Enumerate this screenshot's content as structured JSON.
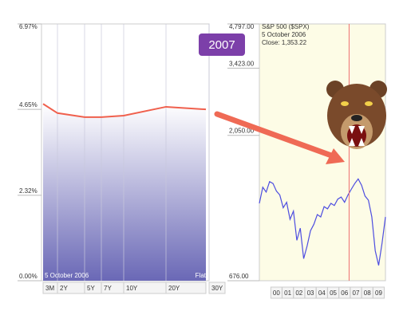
{
  "chart_data": [
    {
      "type": "area",
      "categories": [
        "3M",
        "2Y",
        "5Y",
        "7Y",
        "10Y",
        "20Y",
        "30Y"
      ],
      "values": [
        4.8,
        4.55,
        4.44,
        4.44,
        4.48,
        4.72,
        4.65
      ],
      "color": "#f0604d",
      "ylim": [
        0,
        6.97
      ],
      "yticks": [
        {
          "value": 0,
          "label": "0.00%"
        },
        {
          "value": 2.32,
          "label": "2.32%"
        },
        {
          "value": 4.65,
          "label": "4.65%"
        },
        {
          "value": 6.97,
          "label": "6.97%"
        }
      ],
      "grid": true,
      "annotations": [
        "5  October 2006",
        "Flat"
      ]
    },
    {
      "type": "line",
      "title": "S&P 500 ($SPX)",
      "annotations": [
        "5  October 2006",
        "Close: 1,353.22"
      ],
      "x": [
        -1.5,
        -1.2,
        -0.9,
        -0.6,
        -0.3,
        0,
        0.3,
        0.6,
        0.9,
        1.2,
        1.5,
        1.8,
        2.1,
        2.4,
        2.7,
        3.0,
        3.3,
        3.6,
        3.9,
        4.2,
        4.5,
        4.8,
        5.1,
        5.4,
        5.7,
        6.0,
        6.3,
        6.6,
        6.9,
        7.2,
        7.5,
        7.8,
        8.1,
        8.4,
        8.7,
        9.0,
        9.3,
        9.6
      ],
      "values": [
        1220,
        1380,
        1330,
        1440,
        1420,
        1340,
        1300,
        1180,
        1230,
        1080,
        1150,
        920,
        1010,
        800,
        880,
        990,
        1040,
        1120,
        1100,
        1190,
        1170,
        1220,
        1200,
        1260,
        1280,
        1230,
        1300,
        1360,
        1420,
        1470,
        1400,
        1290,
        1250,
        1100,
        850,
        760,
        900,
        1100
      ],
      "color": "#4d4de0",
      "log_scale": true,
      "xlim": [
        -1.5,
        9.6
      ],
      "xticks": [
        {
          "value": 0,
          "label": "00"
        },
        {
          "value": 1,
          "label": "01"
        },
        {
          "value": 2,
          "label": "02"
        },
        {
          "value": 3,
          "label": "03"
        },
        {
          "value": 4,
          "label": "04"
        },
        {
          "value": 5,
          "label": "05"
        },
        {
          "value": 6,
          "label": "06"
        },
        {
          "value": 7,
          "label": "07"
        },
        {
          "value": 8,
          "label": "08"
        },
        {
          "value": 9,
          "label": "09"
        }
      ],
      "ylim": [
        676,
        4797
      ],
      "yticks": [
        {
          "value": 676,
          "label": "676.00"
        },
        {
          "value": 2050,
          "label": "2,050.00"
        },
        {
          "value": 3423,
          "label": "3,423.00"
        },
        {
          "value": 4797,
          "label": "4,797.00"
        }
      ],
      "cursor_x": 6.4,
      "cursor_color": "#f07070"
    }
  ],
  "badge": "2007"
}
